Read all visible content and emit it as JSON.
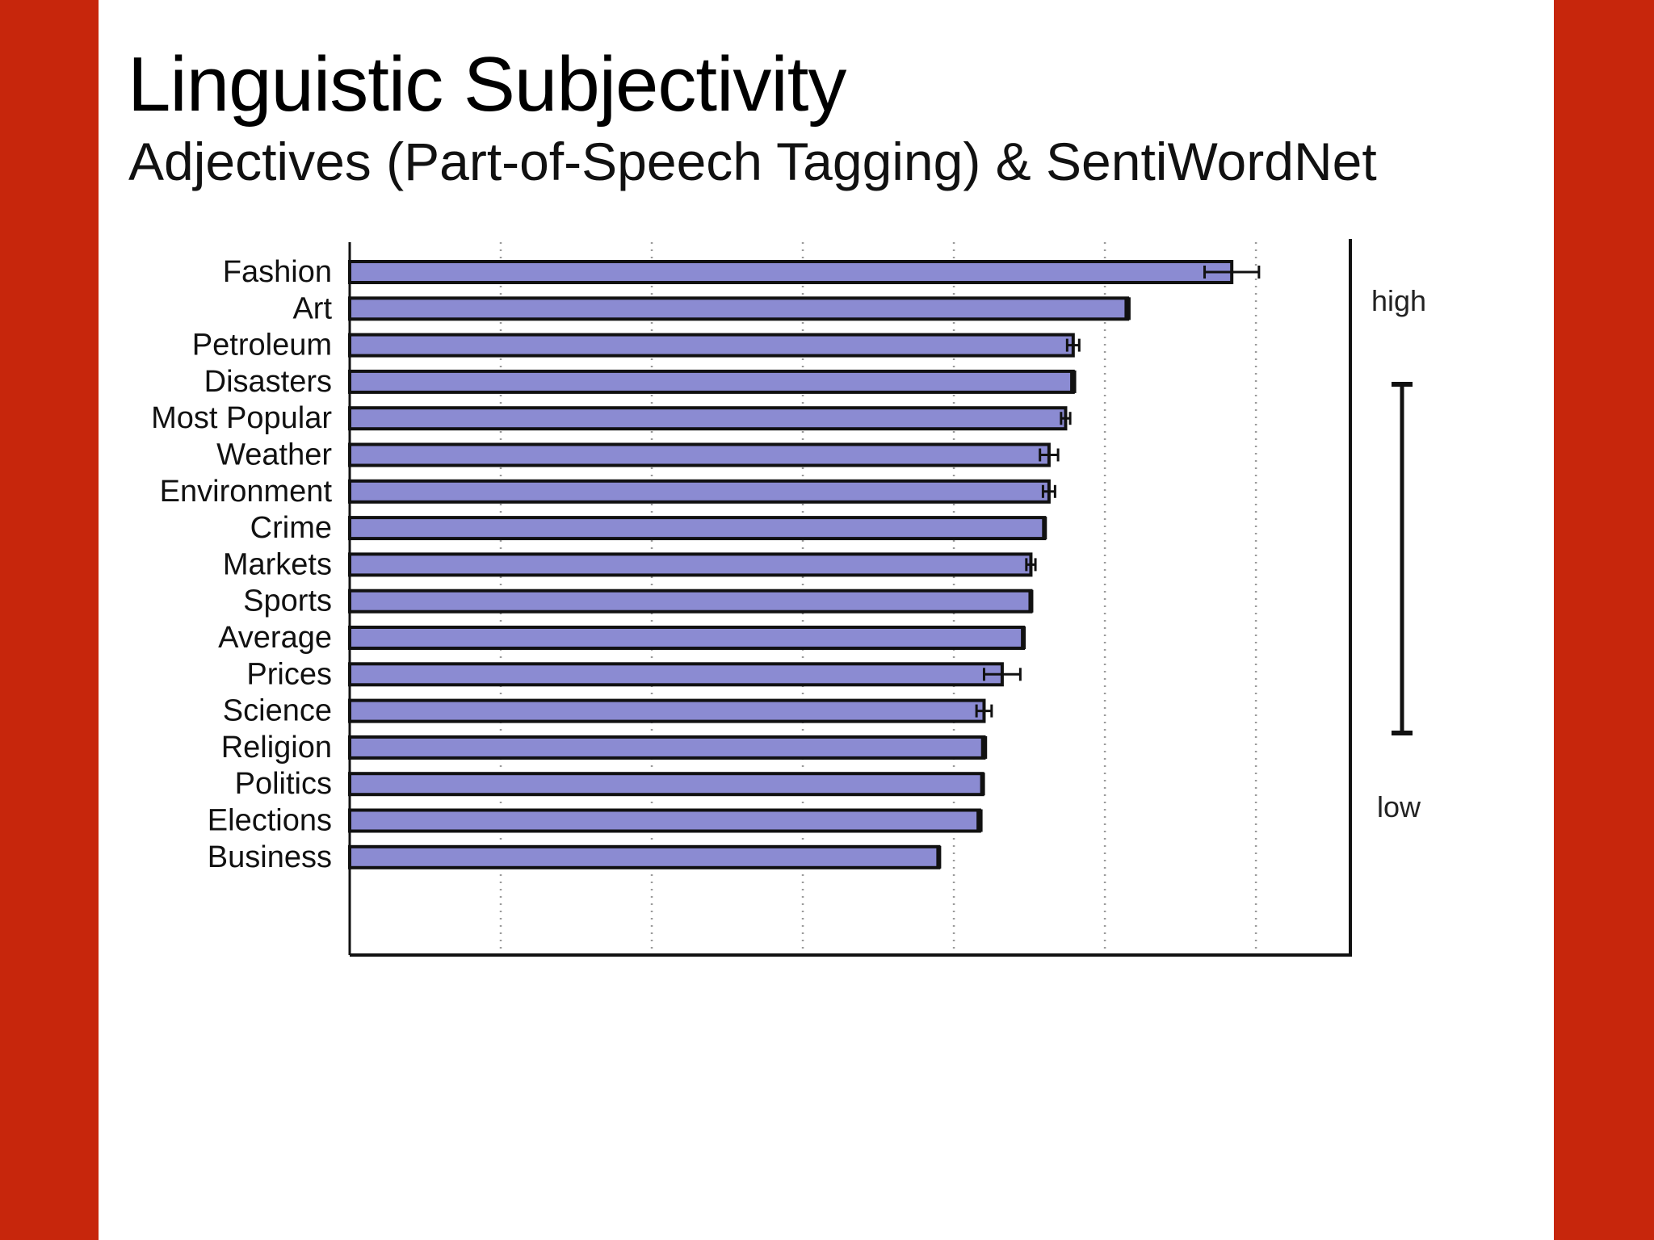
{
  "slide": {
    "title": "Linguistic Subjectivity",
    "subtitle": "Adjectives (Part-of-Speech Tagging) & SentiWordNet"
  },
  "colors": {
    "frame": "#c7260c",
    "background": "#ffffff",
    "bar_fill": "#8b8bd2",
    "bar_stroke": "#111111",
    "text": "#000000"
  },
  "chart_data": {
    "type": "bar",
    "orientation": "horizontal",
    "title": "",
    "xlabel": "",
    "ylabel": "",
    "xlim": [
      0,
      6.625
    ],
    "grid": "vertical dotted",
    "categories": [
      "Fashion",
      "Art",
      "Petroleum",
      "Disasters",
      "Most Popular",
      "Weather",
      "Environment",
      "Crime",
      "Markets",
      "Sports",
      "Average",
      "Prices",
      "Science",
      "Religion",
      "Politics",
      "Elections",
      "Business"
    ],
    "values": [
      5.84,
      5.15,
      4.79,
      4.79,
      4.74,
      4.63,
      4.63,
      4.6,
      4.51,
      4.51,
      4.46,
      4.32,
      4.2,
      4.2,
      4.19,
      4.17,
      3.9
    ],
    "errors": [
      0.18,
      0.02,
      0.04,
      0.02,
      0.03,
      0.06,
      0.04,
      0.01,
      0.03,
      0.01,
      0.01,
      0.12,
      0.05,
      0.02,
      0.01,
      0.02,
      0.01
    ],
    "scale_labels": {
      "high": "high",
      "low": "low"
    }
  }
}
